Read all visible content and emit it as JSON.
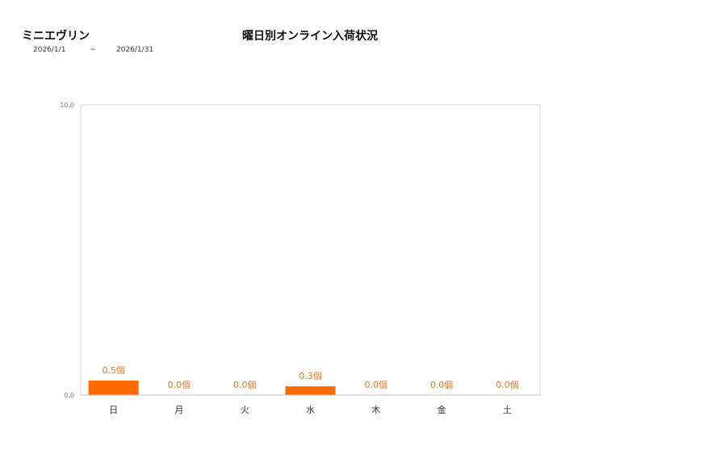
{
  "header": {
    "store_name": "ミニエヴリン",
    "title": "曜日別オンライン入荷状況",
    "date_from": "2026/1/1",
    "date_sep": "~",
    "date_to": "2026/1/31"
  },
  "chart_data": {
    "type": "bar",
    "categories": [
      "日",
      "月",
      "火",
      "水",
      "木",
      "金",
      "土"
    ],
    "values": [
      0.5,
      0.0,
      0.0,
      0.3,
      0.0,
      0.0,
      0.0
    ],
    "value_labels": [
      "0.5個",
      "0.0個",
      "0.0個",
      "0.3個",
      "0.0個",
      "0.0個",
      "0.0個"
    ],
    "ylim": [
      0,
      10
    ],
    "yticks": [
      "0.0",
      "10.0"
    ],
    "grid": false,
    "bar_color": "#ff6a00",
    "label_color": "#e87722"
  }
}
